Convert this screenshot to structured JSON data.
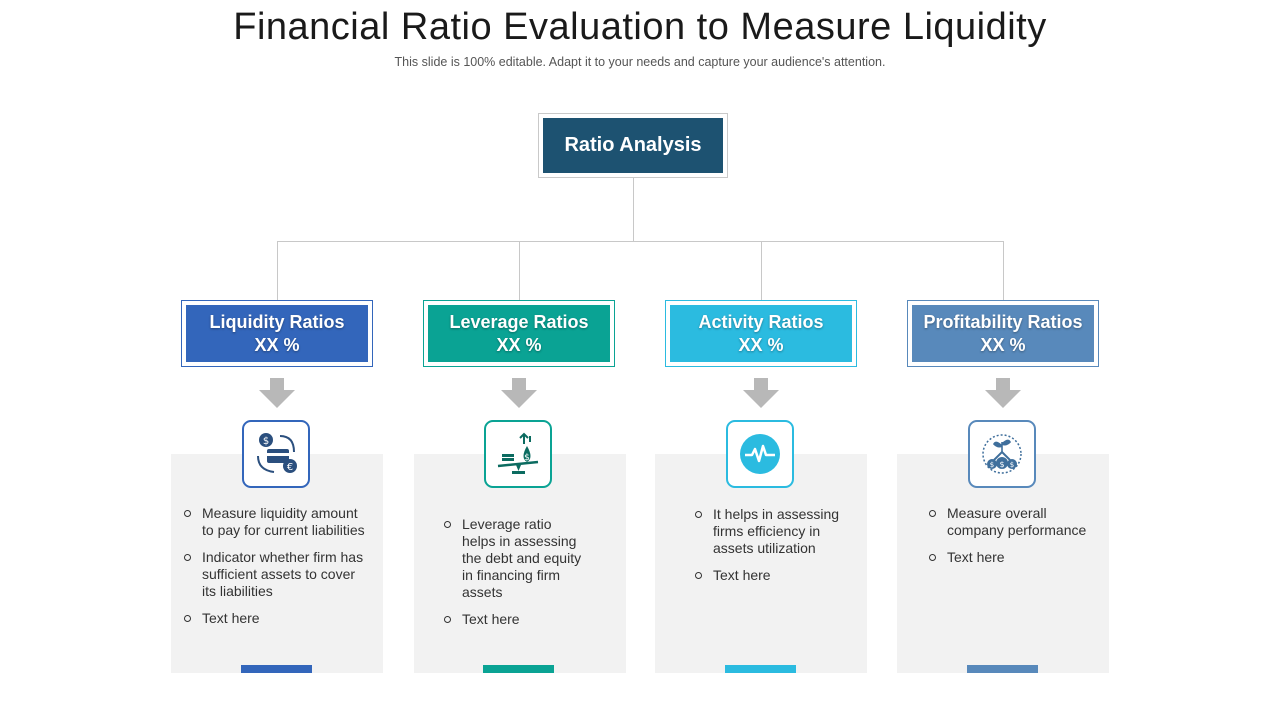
{
  "header": {
    "title": "Financial Ratio Evaluation to Measure Liquidity",
    "subtitle": "This slide is 100% editable. Adapt it to your needs and capture your audience's attention."
  },
  "root": {
    "label": "Ratio Analysis"
  },
  "categories": [
    {
      "name": "Liquidity Ratios",
      "value": "XX %",
      "color": "#3366bb",
      "icon": "money-cycle-icon",
      "bullets": [
        "Measure liquidity amount to pay for current liabilities",
        "Indicator whether firm has sufficient assets to cover its liabilities",
        "Text here"
      ]
    },
    {
      "name": "Leverage Ratios",
      "value": "XX %",
      "color": "#0aa394",
      "icon": "money-balance-icon",
      "bullets": [
        "Leverage ratio helps in assessing the debt and equity in financing firm assets",
        "Text here"
      ]
    },
    {
      "name": "Activity Ratios",
      "value": "XX %",
      "color": "#2bbbe0",
      "icon": "pulse-icon",
      "bullets": [
        "It helps in assessing firms efficiency in assets utilization",
        "Text here"
      ]
    },
    {
      "name": "Profitability Ratios",
      "value": "XX %",
      "color": "#5889bb",
      "icon": "money-growth-icon",
      "bullets": [
        "Measure overall company performance",
        "Text here"
      ]
    }
  ]
}
